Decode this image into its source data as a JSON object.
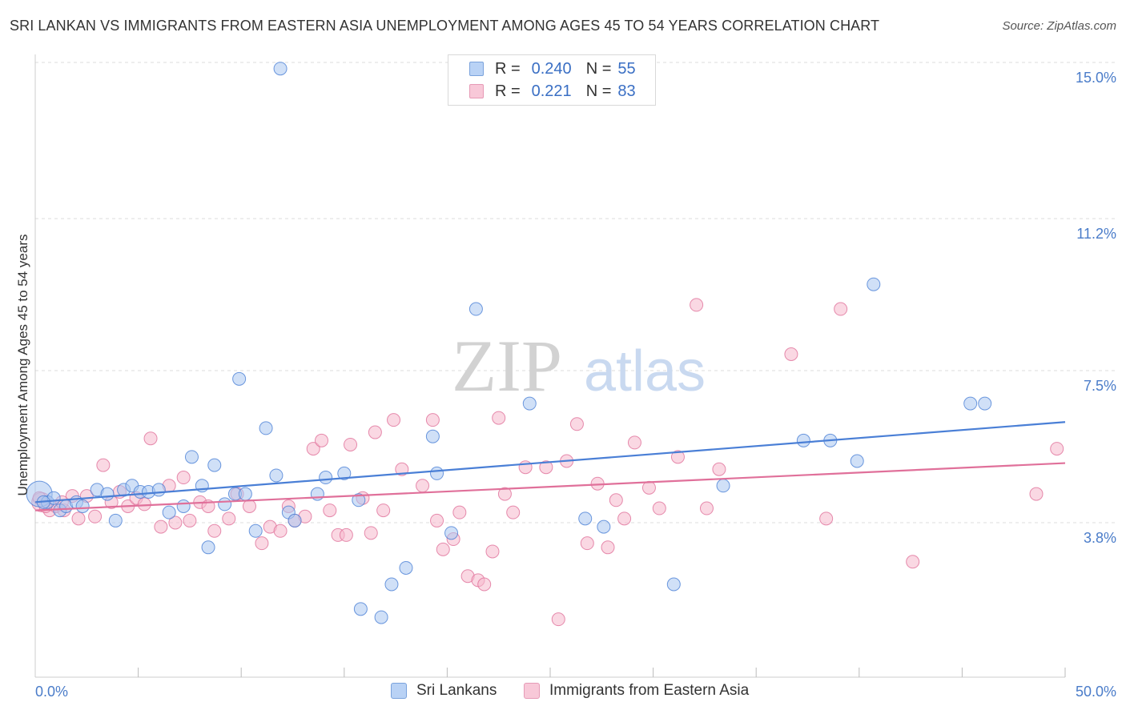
{
  "title": "SRI LANKAN VS IMMIGRANTS FROM EASTERN ASIA UNEMPLOYMENT AMONG AGES 45 TO 54 YEARS CORRELATION CHART",
  "source": "Source: ZipAtlas.com",
  "watermark": {
    "zip": "ZIP",
    "atlas": "atlas"
  },
  "legend": {
    "rows": [
      {
        "r_label": "R =",
        "r_value": "0.240",
        "n_label": "N =",
        "n_value": "55"
      },
      {
        "r_label": "R =",
        "r_value": "0.221",
        "n_label": "N =",
        "n_value": "83"
      }
    ]
  },
  "bottom_legend": {
    "series1": "Sri Lankans",
    "series2": "Immigrants from Eastern Asia"
  },
  "chart_data": {
    "type": "scatter",
    "title": "SRI LANKAN VS IMMIGRANTS FROM EASTERN ASIA UNEMPLOYMENT AMONG AGES 45 TO 54 YEARS CORRELATION CHART",
    "xlabel": "",
    "ylabel": "Unemployment Among Ages 45 to 54 years",
    "xlim": [
      0,
      50
    ],
    "ylim": [
      0,
      15.4
    ],
    "x_tick_labels": [
      "0.0%",
      "50.0%"
    ],
    "y_ticks": [
      3.8,
      7.5,
      11.2,
      15.0
    ],
    "y_tick_labels": [
      "3.8%",
      "7.5%",
      "11.2%",
      "15.0%"
    ],
    "grid": true,
    "colors": {
      "series1": "#4a7fd6",
      "series1_fill": "#a9c6f0",
      "series2": "#e0709a",
      "series2_fill": "#f5b8cc",
      "axis_text": "#4a7cc9"
    },
    "series": [
      {
        "name": "Sri Lankans",
        "trend": {
          "x": [
            0,
            50
          ],
          "y": [
            4.3,
            6.25
          ]
        },
        "points": [
          [
            0.2,
            4.5
          ],
          [
            0.6,
            4.3
          ],
          [
            0.9,
            4.4
          ],
          [
            1.2,
            4.1
          ],
          [
            1.5,
            4.2
          ],
          [
            2.0,
            4.3
          ],
          [
            2.3,
            4.2
          ],
          [
            3.0,
            4.6
          ],
          [
            3.5,
            4.5
          ],
          [
            3.9,
            3.85
          ],
          [
            4.3,
            4.6
          ],
          [
            4.7,
            4.7
          ],
          [
            5.1,
            4.55
          ],
          [
            5.5,
            4.55
          ],
          [
            6.0,
            4.6
          ],
          [
            6.5,
            4.05
          ],
          [
            7.2,
            4.2
          ],
          [
            7.6,
            5.4
          ],
          [
            8.1,
            4.7
          ],
          [
            8.4,
            3.2
          ],
          [
            8.7,
            5.2
          ],
          [
            9.2,
            4.25
          ],
          [
            9.7,
            4.5
          ],
          [
            9.9,
            7.3
          ],
          [
            10.2,
            4.5
          ],
          [
            10.7,
            3.6
          ],
          [
            11.2,
            6.1
          ],
          [
            11.7,
            4.95
          ],
          [
            11.9,
            14.85
          ],
          [
            12.3,
            4.05
          ],
          [
            12.6,
            3.85
          ],
          [
            13.7,
            4.5
          ],
          [
            14.1,
            4.9
          ],
          [
            15.0,
            5.0
          ],
          [
            15.7,
            4.35
          ],
          [
            15.8,
            1.7
          ],
          [
            16.8,
            1.5
          ],
          [
            17.3,
            2.3
          ],
          [
            18.0,
            2.7
          ],
          [
            19.3,
            5.9
          ],
          [
            19.5,
            5.0
          ],
          [
            20.2,
            3.55
          ],
          [
            21.4,
            9.0
          ],
          [
            24.0,
            6.7
          ],
          [
            26.7,
            3.9
          ],
          [
            27.6,
            3.7
          ],
          [
            31.0,
            2.3
          ],
          [
            33.4,
            4.7
          ],
          [
            37.3,
            5.8
          ],
          [
            38.6,
            5.8
          ],
          [
            39.9,
            5.3
          ],
          [
            40.7,
            9.6
          ],
          [
            45.4,
            6.7
          ],
          [
            46.1,
            6.7
          ],
          [
            0.4,
            4.3
          ]
        ]
      },
      {
        "name": "Immigrants from Eastern Asia",
        "trend": {
          "x": [
            0,
            50
          ],
          "y": [
            4.1,
            5.25
          ]
        },
        "points": [
          [
            0.3,
            4.3
          ],
          [
            0.7,
            4.1
          ],
          [
            1.0,
            4.2
          ],
          [
            1.4,
            4.1
          ],
          [
            1.8,
            4.45
          ],
          [
            2.1,
            3.9
          ],
          [
            2.5,
            4.45
          ],
          [
            2.9,
            3.95
          ],
          [
            3.3,
            5.2
          ],
          [
            3.7,
            4.3
          ],
          [
            4.1,
            4.55
          ],
          [
            4.5,
            4.2
          ],
          [
            4.9,
            4.4
          ],
          [
            5.3,
            4.25
          ],
          [
            5.6,
            5.85
          ],
          [
            6.1,
            3.7
          ],
          [
            6.5,
            4.7
          ],
          [
            6.8,
            3.8
          ],
          [
            7.2,
            4.9
          ],
          [
            7.5,
            3.85
          ],
          [
            8.0,
            4.3
          ],
          [
            8.4,
            4.2
          ],
          [
            8.7,
            3.6
          ],
          [
            9.4,
            3.9
          ],
          [
            9.8,
            4.5
          ],
          [
            10.4,
            4.2
          ],
          [
            11.0,
            3.3
          ],
          [
            11.4,
            3.7
          ],
          [
            11.9,
            3.6
          ],
          [
            12.3,
            4.2
          ],
          [
            12.6,
            3.85
          ],
          [
            13.1,
            3.95
          ],
          [
            13.5,
            5.6
          ],
          [
            13.9,
            5.8
          ],
          [
            14.3,
            4.1
          ],
          [
            14.7,
            3.5
          ],
          [
            15.1,
            3.5
          ],
          [
            15.3,
            5.7
          ],
          [
            15.9,
            4.4
          ],
          [
            16.3,
            3.55
          ],
          [
            16.5,
            6.0
          ],
          [
            16.9,
            4.1
          ],
          [
            17.4,
            6.3
          ],
          [
            17.8,
            5.1
          ],
          [
            18.8,
            4.7
          ],
          [
            19.3,
            6.3
          ],
          [
            19.5,
            3.85
          ],
          [
            19.8,
            3.15
          ],
          [
            20.3,
            3.4
          ],
          [
            20.6,
            4.05
          ],
          [
            21.0,
            2.5
          ],
          [
            21.5,
            2.4
          ],
          [
            21.8,
            2.3
          ],
          [
            22.2,
            3.1
          ],
          [
            22.5,
            6.35
          ],
          [
            22.8,
            4.5
          ],
          [
            23.2,
            4.05
          ],
          [
            23.8,
            5.15
          ],
          [
            24.8,
            5.15
          ],
          [
            25.4,
            1.45
          ],
          [
            25.8,
            5.3
          ],
          [
            26.3,
            6.2
          ],
          [
            26.8,
            3.3
          ],
          [
            27.3,
            4.75
          ],
          [
            27.8,
            3.2
          ],
          [
            28.2,
            4.35
          ],
          [
            28.6,
            3.9
          ],
          [
            29.1,
            5.75
          ],
          [
            29.8,
            4.65
          ],
          [
            30.3,
            4.15
          ],
          [
            31.2,
            5.4
          ],
          [
            32.1,
            9.1
          ],
          [
            32.6,
            4.15
          ],
          [
            33.2,
            5.1
          ],
          [
            36.7,
            7.9
          ],
          [
            38.4,
            3.9
          ],
          [
            39.1,
            9.0
          ],
          [
            42.6,
            2.85
          ],
          [
            48.6,
            4.5
          ],
          [
            49.6,
            5.6
          ],
          [
            1.3,
            4.3
          ],
          [
            0.2,
            4.4
          ],
          [
            0.5,
            4.2
          ]
        ]
      }
    ]
  }
}
